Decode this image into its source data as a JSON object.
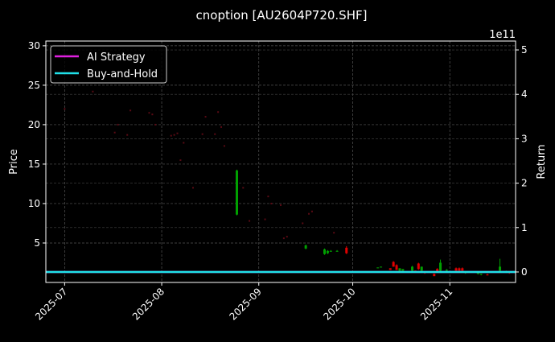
{
  "chart_data": {
    "type": "candlestick",
    "title": "cnoption [AU2604P720.SHF]",
    "ylabel": "Price",
    "y2label": "Return",
    "y2_offset_text": "1e11",
    "xlim": [
      "2025-06-25",
      "2025-11-22"
    ],
    "ylim": [
      0,
      30.6
    ],
    "y2lim": [
      -0.236,
      5.2
    ],
    "xticks": [
      "2025-07",
      "2025-08",
      "2025-09",
      "2025-10",
      "2025-11"
    ],
    "xtick_dates": [
      "2025-07-01",
      "2025-08-01",
      "2025-09-01",
      "2025-10-01",
      "2025-11-01"
    ],
    "yticks": [
      5,
      10,
      15,
      20,
      25,
      30
    ],
    "y2ticks": [
      0,
      1,
      2,
      3,
      4,
      5
    ],
    "grid": true,
    "legend_position": "top-left",
    "colors": {
      "up": "#00a000",
      "down": "#e00000",
      "doji": "#5a0a14",
      "ai": "#e020e0",
      "bh": "#20e0e8"
    },
    "legend": [
      {
        "label": "AI Strategy",
        "color": "#e020e0"
      },
      {
        "label": "Buy-and-Hold",
        "color": "#20e0e8"
      }
    ],
    "series": [
      {
        "name": "AI Strategy",
        "axis": "right",
        "x": [
          "2025-06-25",
          "2025-11-22"
        ],
        "values": [
          0,
          0
        ]
      },
      {
        "name": "Buy-and-Hold",
        "axis": "right",
        "x": [
          "2025-06-25",
          "2025-11-22"
        ],
        "values": [
          0,
          0
        ]
      }
    ],
    "candles": [
      [
        "2025-07-01",
        22,
        22,
        22,
        22
      ],
      [
        "2025-07-10",
        24.2,
        24.2,
        24.2,
        24.2
      ],
      [
        "2025-07-17",
        19,
        19,
        19,
        19
      ],
      [
        "2025-07-18",
        20,
        20,
        20,
        20
      ],
      [
        "2025-07-21",
        18.7,
        18.7,
        18.7,
        18.7
      ],
      [
        "2025-07-22",
        21.8,
        21.8,
        21.8,
        21.8
      ],
      [
        "2025-07-28",
        21.5,
        21.5,
        21.5,
        21.5
      ],
      [
        "2025-07-29",
        21.3,
        21.3,
        21.3,
        21.3
      ],
      [
        "2025-07-30",
        20,
        20,
        20,
        20
      ],
      [
        "2025-08-04",
        18.6,
        18.6,
        18.6,
        18.6
      ],
      [
        "2025-08-05",
        18.7,
        18.7,
        18.7,
        18.7
      ],
      [
        "2025-08-06",
        18.9,
        18.9,
        18.9,
        18.9
      ],
      [
        "2025-08-07",
        15.5,
        15.5,
        15.5,
        15.5
      ],
      [
        "2025-08-08",
        17.7,
        17.7,
        17.7,
        17.7
      ],
      [
        "2025-08-11",
        12,
        12,
        12,
        12
      ],
      [
        "2025-08-14",
        18.8,
        18.8,
        18.8,
        18.8
      ],
      [
        "2025-08-15",
        21,
        21,
        21,
        21
      ],
      [
        "2025-08-18",
        18.8,
        18.8,
        18.8,
        18.8
      ],
      [
        "2025-08-19",
        21.6,
        21.6,
        21.6,
        21.6
      ],
      [
        "2025-08-20",
        19.7,
        19.7,
        19.7,
        19.7
      ],
      [
        "2025-08-21",
        17.3,
        17.3,
        17.3,
        17.3
      ],
      [
        "2025-08-25",
        8.6,
        14.3,
        8.5,
        14.2
      ],
      [
        "2025-08-27",
        12,
        12,
        12,
        12
      ],
      [
        "2025-08-29",
        7.8,
        7.8,
        7.8,
        7.8
      ],
      [
        "2025-09-03",
        8,
        8,
        8,
        8
      ],
      [
        "2025-09-04",
        10.9,
        10.9,
        10.9,
        10.9
      ],
      [
        "2025-09-05",
        10,
        10,
        10,
        10
      ],
      [
        "2025-09-08",
        9.8,
        9.8,
        9.8,
        9.8
      ],
      [
        "2025-09-09",
        5.6,
        5.6,
        5.6,
        5.6
      ],
      [
        "2025-09-10",
        5.8,
        5.8,
        5.8,
        5.8
      ],
      [
        "2025-09-15",
        7.5,
        7.5,
        7.5,
        7.5
      ],
      [
        "2025-09-16",
        4.3,
        4.8,
        4.2,
        4.7
      ],
      [
        "2025-09-17",
        8.7,
        8.7,
        8.7,
        8.7
      ],
      [
        "2025-09-18",
        9,
        9,
        9,
        9
      ],
      [
        "2025-09-22",
        3.6,
        4.3,
        3.5,
        4.2
      ],
      [
        "2025-09-23",
        3.7,
        4.1,
        3.6,
        4.0
      ],
      [
        "2025-09-24",
        3.9,
        4.1,
        3.9,
        4.0
      ],
      [
        "2025-09-25",
        6.3,
        6.3,
        6.3,
        6.3
      ],
      [
        "2025-09-26",
        3.9,
        4.1,
        3.9,
        4.0
      ],
      [
        "2025-09-29",
        4.4,
        4.6,
        3.6,
        3.7
      ],
      [
        "2025-10-09",
        1.8,
        1.9,
        1.8,
        1.9
      ],
      [
        "2025-10-10",
        1.9,
        2.0,
        1.9,
        2.0
      ],
      [
        "2025-10-13",
        1.8,
        1.8,
        1.6,
        1.6
      ],
      [
        "2025-10-14",
        2.6,
        2.7,
        2.0,
        2.0
      ],
      [
        "2025-10-15",
        2.2,
        2.3,
        1.6,
        1.6
      ],
      [
        "2025-10-16",
        1.5,
        1.8,
        1.4,
        1.8
      ],
      [
        "2025-10-17",
        1.5,
        1.7,
        1.4,
        1.7
      ],
      [
        "2025-10-20",
        1.5,
        2.1,
        1.4,
        2.0
      ],
      [
        "2025-10-21",
        1.5,
        1.5,
        1.3,
        1.4
      ],
      [
        "2025-10-22",
        2.4,
        2.5,
        1.6,
        1.7
      ],
      [
        "2025-10-23",
        1.5,
        2.0,
        1.4,
        2.0
      ],
      [
        "2025-10-24",
        1.3,
        1.3,
        1.1,
        1.2
      ],
      [
        "2025-10-27",
        1.1,
        1.1,
        0.8,
        0.8
      ],
      [
        "2025-10-28",
        1.7,
        1.8,
        1.3,
        1.3
      ],
      [
        "2025-10-29",
        1.5,
        2.9,
        1.4,
        2.5
      ],
      [
        "2025-10-31",
        1.5,
        1.7,
        1.4,
        1.6
      ],
      [
        "2025-11-03",
        1.8,
        1.9,
        1.5,
        1.5
      ],
      [
        "2025-11-04",
        1.8,
        1.9,
        1.5,
        1.5
      ],
      [
        "2025-11-05",
        1.8,
        1.9,
        1.5,
        1.5
      ],
      [
        "2025-11-06",
        1.2,
        1.3,
        1.1,
        1.3
      ],
      [
        "2025-11-10",
        1.1,
        1.2,
        1.0,
        1.2
      ],
      [
        "2025-11-11",
        1.0,
        1.1,
        0.9,
        1.1
      ],
      [
        "2025-11-13",
        1.0,
        1.1,
        0.9,
        0.9
      ],
      [
        "2025-11-17",
        1.5,
        3.0,
        1.4,
        2.0
      ],
      [
        "2025-11-19",
        1.3,
        1.5,
        1.2,
        1.4
      ],
      [
        "2025-11-20",
        1.3,
        1.3,
        1.1,
        1.2
      ]
    ]
  }
}
